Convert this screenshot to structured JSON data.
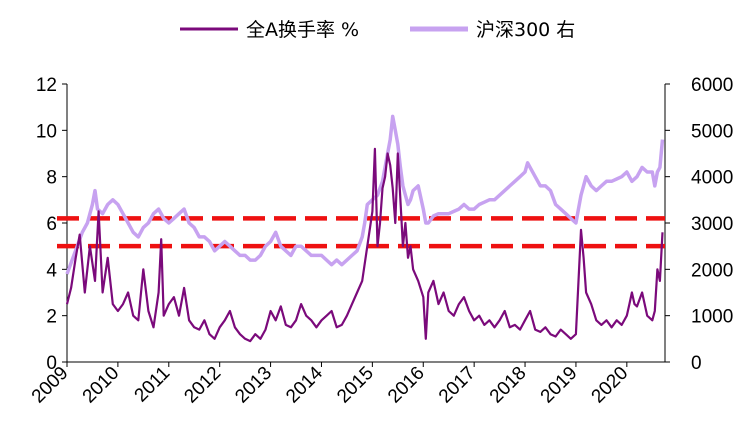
{
  "chart_data": {
    "type": "line",
    "legend": {
      "placement": "top-center",
      "items": [
        {
          "label": "全A换手率 %",
          "color": "#7b0a7b"
        },
        {
          "label": "沪深300 右",
          "color": "#c7a2f0"
        }
      ]
    },
    "x_ticks": [
      "2009",
      "2010",
      "2011",
      "2012",
      "2013",
      "2014",
      "2015",
      "2016",
      "2017",
      "2018",
      "2019",
      "2020"
    ],
    "xlim": [
      2009.0,
      2020.75
    ],
    "y_left": {
      "ylim": [
        0,
        12
      ],
      "ticks": [
        0,
        2,
        4,
        6,
        8,
        10,
        12
      ]
    },
    "y_right": {
      "ylim": [
        0,
        6000
      ],
      "ticks": [
        0,
        1000,
        2000,
        3000,
        4000,
        5000,
        6000
      ]
    },
    "reference_lines": [
      {
        "axis": "left",
        "value": 6.2,
        "color": "#ee1111",
        "style": "dashed"
      },
      {
        "axis": "left",
        "value": 5.0,
        "color": "#ee1111",
        "style": "dashed"
      }
    ],
    "series": [
      {
        "name": "全A换手率 %",
        "axis": "left",
        "color": "#7b0a7b",
        "x": [
          2009.0,
          2009.08,
          2009.17,
          2009.25,
          2009.35,
          2009.45,
          2009.55,
          2009.62,
          2009.7,
          2009.8,
          2009.9,
          2010.0,
          2010.1,
          2010.2,
          2010.3,
          2010.4,
          2010.5,
          2010.6,
          2010.7,
          2010.8,
          2010.85,
          2010.9,
          2011.0,
          2011.1,
          2011.2,
          2011.3,
          2011.4,
          2011.5,
          2011.6,
          2011.7,
          2011.8,
          2011.9,
          2012.0,
          2012.1,
          2012.2,
          2012.3,
          2012.4,
          2012.5,
          2012.6,
          2012.7,
          2012.8,
          2012.9,
          2013.0,
          2013.1,
          2013.2,
          2013.3,
          2013.4,
          2013.5,
          2013.6,
          2013.7,
          2013.8,
          2013.9,
          2014.0,
          2014.1,
          2014.2,
          2014.3,
          2014.4,
          2014.5,
          2014.6,
          2014.7,
          2014.8,
          2014.9,
          2015.0,
          2015.05,
          2015.1,
          2015.15,
          2015.2,
          2015.25,
          2015.3,
          2015.35,
          2015.4,
          2015.45,
          2015.5,
          2015.55,
          2015.6,
          2015.65,
          2015.7,
          2015.75,
          2015.8,
          2015.9,
          2016.0,
          2016.05,
          2016.1,
          2016.2,
          2016.3,
          2016.4,
          2016.5,
          2016.6,
          2016.7,
          2016.8,
          2016.9,
          2017.0,
          2017.1,
          2017.2,
          2017.3,
          2017.4,
          2017.5,
          2017.6,
          2017.7,
          2017.8,
          2017.9,
          2018.0,
          2018.1,
          2018.2,
          2018.3,
          2018.4,
          2018.5,
          2018.6,
          2018.7,
          2018.8,
          2018.9,
          2019.0,
          2019.05,
          2019.1,
          2019.15,
          2019.2,
          2019.3,
          2019.4,
          2019.5,
          2019.6,
          2019.7,
          2019.8,
          2019.9,
          2020.0,
          2020.05,
          2020.1,
          2020.15,
          2020.2,
          2020.3,
          2020.4,
          2020.5,
          2020.55,
          2020.6,
          2020.65,
          2020.7
        ],
        "y": [
          2.5,
          3.2,
          4.5,
          5.5,
          3.0,
          5.0,
          3.5,
          6.5,
          3.0,
          4.5,
          2.5,
          2.2,
          2.5,
          3.0,
          2.0,
          1.8,
          4.0,
          2.2,
          1.5,
          3.0,
          5.3,
          2.0,
          2.5,
          2.8,
          2.0,
          3.2,
          1.8,
          1.5,
          1.4,
          1.8,
          1.2,
          1.0,
          1.5,
          1.8,
          2.2,
          1.5,
          1.2,
          1.0,
          0.9,
          1.2,
          1.0,
          1.4,
          2.2,
          1.8,
          2.4,
          1.6,
          1.5,
          1.8,
          2.5,
          2.0,
          1.8,
          1.5,
          1.8,
          2.0,
          2.2,
          1.5,
          1.6,
          2.0,
          2.5,
          3.0,
          3.5,
          5.0,
          6.5,
          9.2,
          5.0,
          6.0,
          7.5,
          8.0,
          9.0,
          8.5,
          7.5,
          6.0,
          9.0,
          7.0,
          5.0,
          6.0,
          4.5,
          5.0,
          4.0,
          3.5,
          2.8,
          1.0,
          3.0,
          3.5,
          2.5,
          3.0,
          2.2,
          2.0,
          2.5,
          2.8,
          2.2,
          1.8,
          2.0,
          1.6,
          1.8,
          1.5,
          1.8,
          2.2,
          1.5,
          1.6,
          1.4,
          1.8,
          2.2,
          1.4,
          1.3,
          1.5,
          1.2,
          1.1,
          1.4,
          1.2,
          1.0,
          1.2,
          3.5,
          5.7,
          4.5,
          3.0,
          2.5,
          1.8,
          1.6,
          1.8,
          1.5,
          1.8,
          1.6,
          2.0,
          2.5,
          3.0,
          2.5,
          2.4,
          3.0,
          2.0,
          1.8,
          2.2,
          4.0,
          3.5,
          5.6
        ]
      },
      {
        "name": "沪深300 右",
        "axis": "right",
        "color": "#c7a2f0",
        "x": [
          2009.0,
          2009.1,
          2009.2,
          2009.3,
          2009.4,
          2009.5,
          2009.55,
          2009.6,
          2009.7,
          2009.8,
          2009.9,
          2010.0,
          2010.1,
          2010.2,
          2010.3,
          2010.4,
          2010.5,
          2010.6,
          2010.7,
          2010.8,
          2010.9,
          2011.0,
          2011.1,
          2011.2,
          2011.3,
          2011.4,
          2011.5,
          2011.6,
          2011.7,
          2011.8,
          2011.9,
          2012.0,
          2012.1,
          2012.2,
          2012.3,
          2012.4,
          2012.5,
          2012.6,
          2012.7,
          2012.8,
          2012.9,
          2013.0,
          2013.1,
          2013.2,
          2013.3,
          2013.4,
          2013.5,
          2013.6,
          2013.7,
          2013.8,
          2013.9,
          2014.0,
          2014.1,
          2014.2,
          2014.3,
          2014.4,
          2014.5,
          2014.6,
          2014.7,
          2014.8,
          2014.85,
          2014.9,
          2015.0,
          2015.1,
          2015.2,
          2015.3,
          2015.35,
          2015.4,
          2015.45,
          2015.5,
          2015.55,
          2015.6,
          2015.65,
          2015.7,
          2015.75,
          2015.8,
          2015.9,
          2016.0,
          2016.05,
          2016.1,
          2016.2,
          2016.3,
          2016.4,
          2016.5,
          2016.6,
          2016.7,
          2016.8,
          2016.9,
          2017.0,
          2017.1,
          2017.2,
          2017.3,
          2017.4,
          2017.5,
          2017.6,
          2017.7,
          2017.8,
          2017.9,
          2018.0,
          2018.05,
          2018.1,
          2018.2,
          2018.3,
          2018.4,
          2018.5,
          2018.6,
          2018.7,
          2018.8,
          2018.9,
          2019.0,
          2019.1,
          2019.2,
          2019.3,
          2019.4,
          2019.5,
          2019.6,
          2019.7,
          2019.8,
          2019.9,
          2020.0,
          2020.1,
          2020.2,
          2020.3,
          2020.4,
          2020.5,
          2020.55,
          2020.6,
          2020.65,
          2020.7
        ],
        "y": [
          1900,
          2200,
          2500,
          2800,
          3000,
          3400,
          3700,
          3300,
          3200,
          3400,
          3500,
          3400,
          3200,
          3000,
          2800,
          2700,
          2900,
          3000,
          3200,
          3300,
          3100,
          3000,
          3100,
          3200,
          3300,
          3000,
          2900,
          2700,
          2700,
          2600,
          2400,
          2500,
          2600,
          2500,
          2400,
          2300,
          2300,
          2200,
          2200,
          2300,
          2500,
          2600,
          2800,
          2500,
          2400,
          2300,
          2500,
          2500,
          2400,
          2300,
          2300,
          2300,
          2200,
          2100,
          2200,
          2100,
          2200,
          2300,
          2400,
          2700,
          3000,
          3400,
          3500,
          3600,
          3900,
          4500,
          4800,
          5300,
          5000,
          4700,
          4200,
          3800,
          3600,
          3400,
          3500,
          3700,
          3800,
          3300,
          3000,
          3000,
          3150,
          3200,
          3200,
          3200,
          3250,
          3300,
          3400,
          3300,
          3300,
          3400,
          3450,
          3500,
          3500,
          3600,
          3700,
          3800,
          3900,
          4000,
          4100,
          4300,
          4200,
          4000,
          3800,
          3800,
          3700,
          3400,
          3300,
          3200,
          3100,
          3000,
          3600,
          4000,
          3800,
          3700,
          3800,
          3900,
          3900,
          3950,
          4000,
          4100,
          3900,
          4000,
          4200,
          4100,
          4100,
          3800,
          4100,
          4200,
          4800
        ]
      }
    ]
  }
}
